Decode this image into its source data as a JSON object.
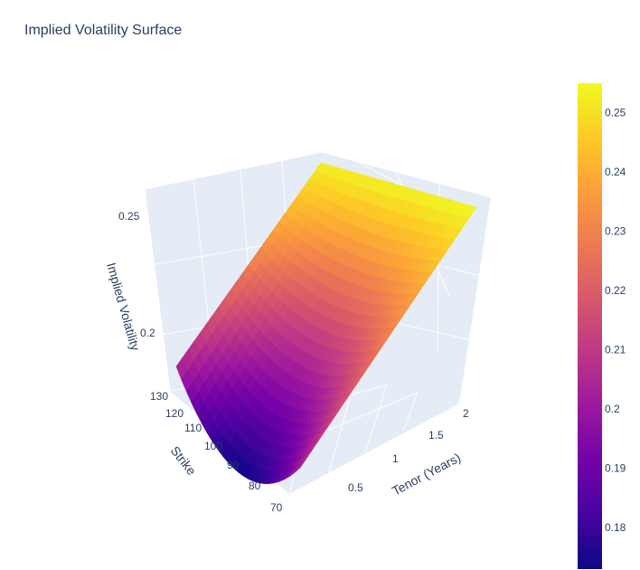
{
  "chart_data": {
    "type": "surface",
    "title": "Implied Volatility Surface",
    "x_axis": {
      "label": "Tenor (Years)",
      "ticks": [
        "0.5",
        "1",
        "1.5",
        "2"
      ],
      "range": [
        0.25,
        2
      ]
    },
    "y_axis": {
      "label": "Strike",
      "ticks": [
        "70",
        "80",
        "90",
        "100",
        "110",
        "120",
        "130"
      ],
      "range": [
        70,
        130
      ]
    },
    "z_axis": {
      "label": "Implied Volatility",
      "ticks": [
        "0.2",
        "0.25"
      ],
      "range": [
        0.173,
        0.255
      ]
    },
    "corner_values": [
      {
        "tenor": 0.25,
        "strike": 70,
        "iv": 0.205
      },
      {
        "tenor": 0.25,
        "strike": 130,
        "iv": 0.205
      },
      {
        "tenor": 2,
        "strike": 130,
        "iv": 0.255
      },
      {
        "tenor": 2,
        "strike": 70,
        "iv": 0.253
      }
    ],
    "min_value": {
      "tenor": 0.25,
      "strike": 100,
      "iv": 0.173
    },
    "colorbar": {
      "range": [
        0.173,
        0.255
      ],
      "ticks": [
        "0.18",
        "0.19",
        "0.2",
        "0.21",
        "0.22",
        "0.23",
        "0.24",
        "0.25"
      ],
      "colors": [
        "#0d0887",
        "#46039f",
        "#7201a8",
        "#9c179e",
        "#bd3786",
        "#d8576b",
        "#ed7953",
        "#fb9f3a",
        "#fdca26",
        "#f0f921"
      ]
    },
    "grid": true
  }
}
